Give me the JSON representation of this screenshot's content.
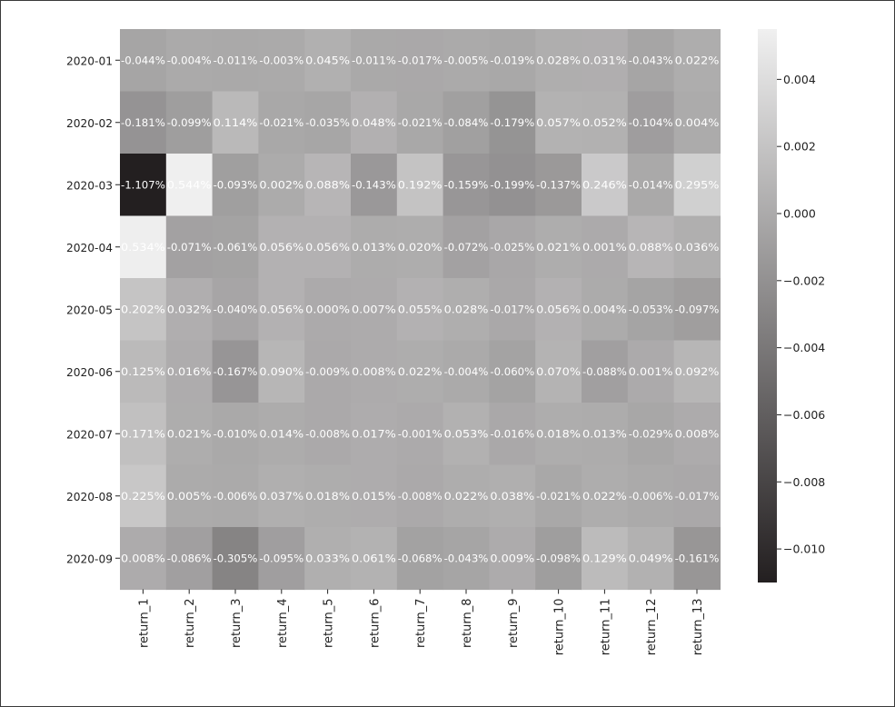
{
  "chart_data": {
    "type": "heatmap",
    "colormap": "gray",
    "rows": [
      "2020-01",
      "2020-02",
      "2020-03",
      "2020-04",
      "2020-05",
      "2020-06",
      "2020-07",
      "2020-08",
      "2020-09"
    ],
    "columns": [
      "return_1",
      "return_2",
      "return_3",
      "return_4",
      "return_5",
      "return_6",
      "return_7",
      "return_8",
      "return_9",
      "return_10",
      "return_11",
      "return_12",
      "return_13"
    ],
    "labels": [
      [
        "-0.044%",
        "-0.004%",
        "-0.011%",
        "-0.003%",
        "0.045%",
        "-0.011%",
        "-0.017%",
        "-0.005%",
        "-0.019%",
        "0.028%",
        "0.031%",
        "-0.043%",
        "0.022%"
      ],
      [
        "-0.181%",
        "-0.099%",
        "0.114%",
        "-0.021%",
        "-0.035%",
        "0.048%",
        "-0.021%",
        "-0.084%",
        "-0.179%",
        "0.057%",
        "0.052%",
        "-0.104%",
        "0.004%"
      ],
      [
        "-1.107%",
        "0.544%",
        "-0.093%",
        "0.002%",
        "0.088%",
        "-0.143%",
        "0.192%",
        "-0.159%",
        "-0.199%",
        "-0.137%",
        "0.246%",
        "-0.014%",
        "0.295%"
      ],
      [
        "0.534%",
        "-0.071%",
        "-0.061%",
        "0.056%",
        "0.056%",
        "0.013%",
        "0.020%",
        "-0.072%",
        "-0.025%",
        "0.021%",
        "0.001%",
        "0.088%",
        "0.036%"
      ],
      [
        "0.202%",
        "0.032%",
        "-0.040%",
        "0.056%",
        "0.000%",
        "0.007%",
        "0.055%",
        "0.028%",
        "-0.017%",
        "0.056%",
        "0.004%",
        "-0.053%",
        "-0.097%"
      ],
      [
        "0.125%",
        "0.016%",
        "-0.167%",
        "0.090%",
        "-0.009%",
        "0.008%",
        "0.022%",
        "-0.004%",
        "-0.060%",
        "0.070%",
        "-0.088%",
        "0.001%",
        "0.092%"
      ],
      [
        "0.171%",
        "0.021%",
        "-0.010%",
        "0.014%",
        "-0.008%",
        "0.017%",
        "-0.001%",
        "0.053%",
        "-0.016%",
        "0.018%",
        "0.013%",
        "-0.029%",
        "0.008%"
      ],
      [
        "0.225%",
        "0.005%",
        "-0.006%",
        "0.037%",
        "0.018%",
        "0.015%",
        "-0.008%",
        "0.022%",
        "0.038%",
        "-0.021%",
        "0.022%",
        "-0.006%",
        "-0.017%"
      ],
      [
        "0.008%",
        "-0.086%",
        "-0.305%",
        "-0.095%",
        "0.033%",
        "0.061%",
        "-0.068%",
        "-0.043%",
        "0.009%",
        "-0.098%",
        "0.129%",
        "0.049%",
        "-0.161%"
      ]
    ],
    "colorbar": {
      "range": [
        -0.011,
        0.0055
      ],
      "ticks": [
        0.004,
        0.002,
        0.0,
        -0.002,
        -0.004,
        -0.006,
        -0.008,
        -0.01
      ],
      "tick_labels": [
        "0.004",
        "0.002",
        "0.000",
        "−0.002",
        "−0.004",
        "−0.006",
        "−0.008",
        "−0.010"
      ]
    }
  }
}
